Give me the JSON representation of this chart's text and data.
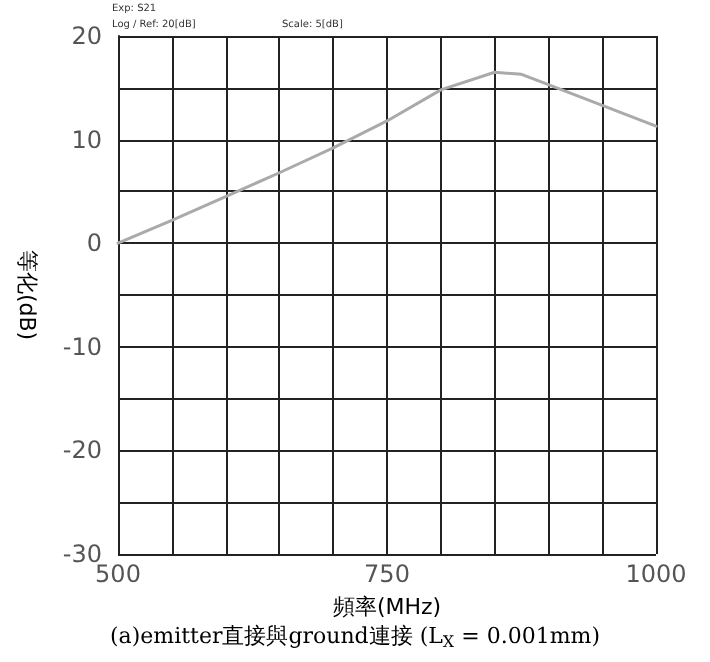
{
  "chart_data": {
    "type": "line",
    "title": "(a)emitter直接與ground連接 (L$_{X}$ = 0.001mm)",
    "xlabel": "頻率(MHz)",
    "ylabel": "等化(dB)",
    "annotations": [
      "Exp: S21",
      "Log / Ref: 20[dB]",
      "Scale: 5[dB]"
    ],
    "x": [
      500,
      550,
      600,
      650,
      700,
      750,
      800,
      850,
      875,
      900,
      950,
      1000
    ],
    "series": [
      {
        "color": "#aaaaaa",
        "values": [
          0,
          2.2,
          4.5,
          6.8,
          9.2,
          11.8,
          14.8,
          16.5,
          16.3,
          15.3,
          13.3,
          11.3
        ]
      }
    ],
    "xlim": [
      500,
      1000
    ],
    "xticks": [
      500,
      {
        "value": 550,
        "label": null
      },
      {
        "value": 600,
        "label": null
      },
      {
        "value": 650,
        "label": null
      },
      {
        "value": 700,
        "label": null
      },
      750,
      {
        "value": 800,
        "label": null
      },
      {
        "value": 850,
        "label": null
      },
      {
        "value": 900,
        "label": null
      },
      {
        "value": 950,
        "label": null
      },
      1000
    ],
    "ylim": [
      -30,
      20
    ],
    "yticks": [
      -30,
      {
        "value": -25,
        "label": null
      },
      -20,
      {
        "value": -15,
        "label": null
      },
      -10,
      {
        "value": -5,
        "label": null
      },
      0,
      {
        "value": 5,
        "label": null
      },
      10,
      {
        "value": 15,
        "label": null
      },
      20
    ],
    "grid": true,
    "marker": "none",
    "line_style": "solid"
  }
}
